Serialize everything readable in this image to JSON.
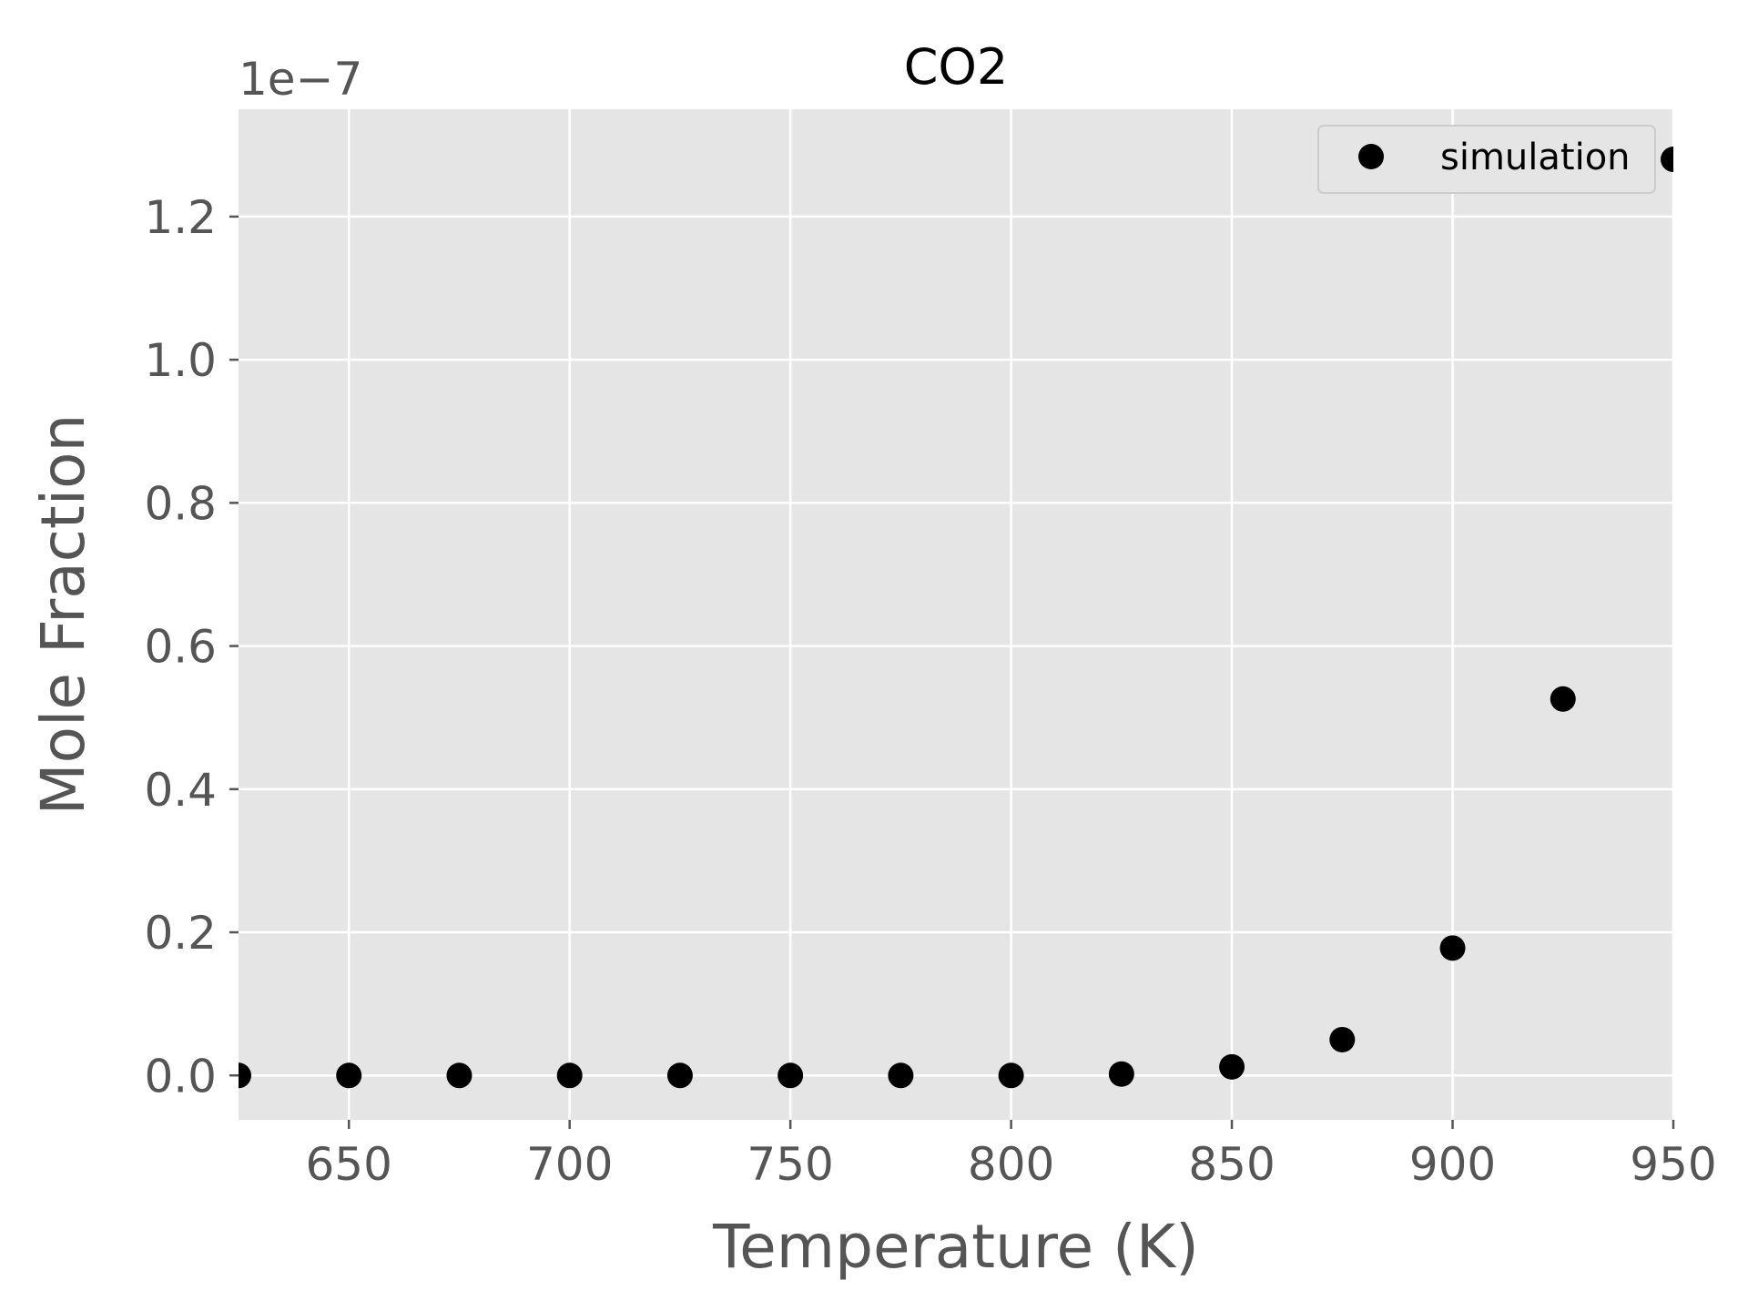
{
  "chart_data": {
    "type": "scatter",
    "title": "CO2",
    "xlabel": "Temperature (K)",
    "ylabel": "Mole Fraction",
    "y_offset_text": "1e−7",
    "xlim": [
      625,
      950
    ],
    "ylim": [
      -6.2e-09,
      1.35e-07
    ],
    "x_ticks": [
      650,
      700,
      750,
      800,
      850,
      900,
      950
    ],
    "x_tick_labels": [
      "650",
      "700",
      "750",
      "800",
      "850",
      "900",
      "950"
    ],
    "y_ticks": [
      0,
      2e-08,
      4e-08,
      6e-08,
      8e-08,
      1e-07,
      1.2e-07
    ],
    "y_tick_labels": [
      "0.0",
      "0.2",
      "0.4",
      "0.6",
      "0.8",
      "1.0",
      "1.2"
    ],
    "grid": true,
    "legend_position": "top-right",
    "series": [
      {
        "name": "simulation",
        "color": "#000000",
        "marker": "circle",
        "x": [
          625,
          650,
          675,
          700,
          725,
          750,
          775,
          800,
          825,
          850,
          875,
          900,
          925,
          950
        ],
        "y": [
          0,
          0,
          0,
          0,
          0,
          0,
          0,
          0,
          2e-10,
          1.2e-09,
          5e-09,
          1.78e-08,
          5.26e-08,
          1.28e-07
        ]
      }
    ],
    "colors": {
      "plot_background": "#e5e5e5",
      "grid": "#ffffff",
      "text": "#555555",
      "legend_background": "#e5e5e5",
      "legend_border": "#cccccc"
    }
  }
}
